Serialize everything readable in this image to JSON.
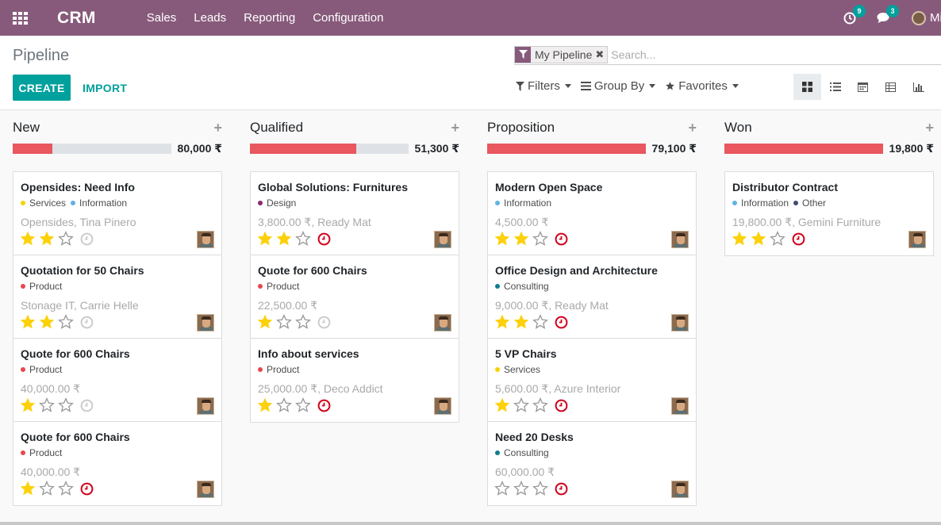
{
  "navbar": {
    "brand": "CRM",
    "menu": [
      "Sales",
      "Leads",
      "Reporting",
      "Configuration"
    ],
    "activity_count": "9",
    "message_count": "3",
    "user_name": "Mitchell Admin",
    "bg_color": "#875a7b"
  },
  "control_panel": {
    "breadcrumb": "Pipeline",
    "create_label": "CREATE",
    "import_label": "IMPORT",
    "search": {
      "facet": "My Pipeline",
      "placeholder": "Search..."
    },
    "filters_label": "Filters",
    "groupby_label": "Group By",
    "favorites_label": "Favorites",
    "views": [
      "kanban-view",
      "list-view",
      "calendar-view",
      "pivot-view",
      "graph-view"
    ],
    "active_view": "kanban-view"
  },
  "columns": [
    {
      "title": "New",
      "progress": 0.25,
      "sum": "80,000 ₹",
      "cards": [
        {
          "title": "Opensides: Need Info",
          "tags": [
            {
              "name": "Services",
              "color": "#f4d402"
            },
            {
              "name": "Information",
              "color": "#5fb3e5"
            }
          ],
          "sub": "Opensides, Tina Pinero",
          "stars": 2,
          "activity": "none"
        },
        {
          "title": "Quotation for 50 Chairs",
          "tags": [
            {
              "name": "Product",
              "color": "#e9474f"
            }
          ],
          "sub": "Stonage IT, Carrie Helle",
          "stars": 2,
          "activity": "none"
        },
        {
          "title": "Quote for 600 Chairs",
          "tags": [
            {
              "name": "Product",
              "color": "#e9474f"
            }
          ],
          "sub": "40,000.00 ₹",
          "stars": 1,
          "activity": "none"
        },
        {
          "title": "Quote for 600 Chairs",
          "tags": [
            {
              "name": "Product",
              "color": "#e9474f"
            }
          ],
          "sub": "40,000.00 ₹",
          "stars": 1,
          "activity": "overdue"
        }
      ]
    },
    {
      "title": "Qualified",
      "progress": 0.67,
      "sum": "51,300 ₹",
      "cards": [
        {
          "title": "Global Solutions: Furnitures",
          "tags": [
            {
              "name": "Design",
              "color": "#8b2a72"
            }
          ],
          "sub": "3,800.00 ₹, Ready Mat",
          "stars": 2,
          "activity": "overdue"
        },
        {
          "title": "Quote for 600 Chairs",
          "tags": [
            {
              "name": "Product",
              "color": "#e9474f"
            }
          ],
          "sub": "22,500.00 ₹",
          "stars": 1,
          "activity": "none"
        },
        {
          "title": "Info about services",
          "tags": [
            {
              "name": "Product",
              "color": "#e9474f"
            }
          ],
          "sub": "25,000.00 ₹, Deco Addict",
          "stars": 1,
          "activity": "overdue"
        }
      ]
    },
    {
      "title": "Proposition",
      "progress": 1.0,
      "sum": "79,100 ₹",
      "cards": [
        {
          "title": "Modern Open Space",
          "tags": [
            {
              "name": "Information",
              "color": "#5fb3e5"
            }
          ],
          "sub": "4,500.00 ₹",
          "stars": 2,
          "activity": "overdue"
        },
        {
          "title": "Office Design and Architecture",
          "tags": [
            {
              "name": "Consulting",
              "color": "#0f7d8e"
            }
          ],
          "sub": "9,000.00 ₹, Ready Mat",
          "stars": 2,
          "activity": "overdue"
        },
        {
          "title": "5 VP Chairs",
          "tags": [
            {
              "name": "Services",
              "color": "#f4d402"
            }
          ],
          "sub": "5,600.00 ₹, Azure Interior",
          "stars": 1,
          "activity": "overdue"
        },
        {
          "title": "Need 20 Desks",
          "tags": [
            {
              "name": "Consulting",
              "color": "#0f7d8e"
            }
          ],
          "sub": "60,000.00 ₹",
          "stars": 0,
          "activity": "overdue"
        }
      ]
    },
    {
      "title": "Won",
      "progress": 1.0,
      "sum": "19,800 ₹",
      "cards": [
        {
          "title": "Distributor Contract",
          "tags": [
            {
              "name": "Information",
              "color": "#5fb3e5"
            },
            {
              "name": "Other",
              "color": "#404c70"
            }
          ],
          "sub": "19,800.00 ₹, Gemini Furniture",
          "stars": 2,
          "activity": "overdue"
        }
      ]
    }
  ]
}
